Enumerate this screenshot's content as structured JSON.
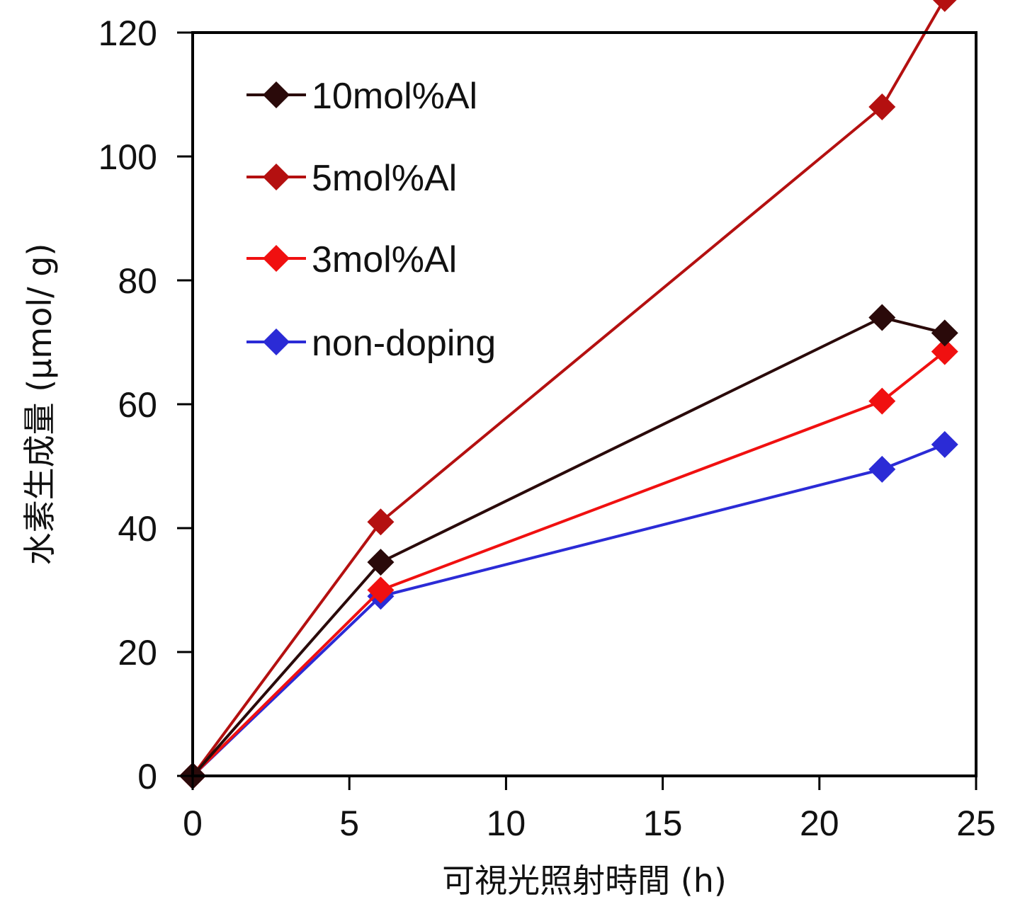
{
  "chart_data": {
    "type": "line",
    "title": "",
    "xlabel": "可視光照射時間 (h)",
    "ylabel": "水素生成量 (μmol/ g)",
    "xlim": [
      0,
      25
    ],
    "ylim": [
      0,
      120
    ],
    "xticks": [
      0,
      5,
      10,
      15,
      20,
      25
    ],
    "yticks": [
      0,
      20,
      40,
      60,
      80,
      100,
      120
    ],
    "grid": false,
    "legend_position": "top-left",
    "x": [
      0,
      6,
      22,
      24
    ],
    "series": [
      {
        "name": "10mol%Al",
        "color": "#2a0a0a",
        "values": [
          0,
          34.5,
          74,
          71.5
        ]
      },
      {
        "name": "5mol%Al",
        "color": "#b41010",
        "values": [
          0,
          41,
          108,
          125.5
        ]
      },
      {
        "name": "3mol%Al",
        "color": "#f01010",
        "values": [
          0,
          30,
          60.5,
          68.5
        ]
      },
      {
        "name": "non-doping",
        "color": "#2b2bd6",
        "values": [
          0,
          29,
          49.5,
          53.5
        ]
      }
    ]
  }
}
